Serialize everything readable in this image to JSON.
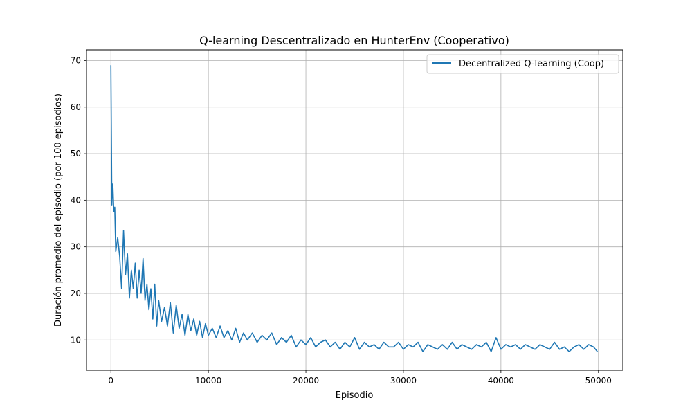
{
  "chart_data": {
    "type": "line",
    "title": "Q-learning Descentralizado en HunterEnv (Cooperativo)",
    "xlabel": "Episodio",
    "ylabel": "Duración promedio del episodio (por 100 episodios)",
    "xlim": [
      -2500,
      52500
    ],
    "ylim": [
      3.5,
      72.3
    ],
    "xticks": [
      0,
      10000,
      20000,
      30000,
      40000,
      50000
    ],
    "xtick_labels": [
      "0",
      "10000",
      "20000",
      "30000",
      "40000",
      "50000"
    ],
    "yticks": [
      10,
      20,
      30,
      40,
      50,
      60,
      70
    ],
    "ytick_labels": [
      "10",
      "20",
      "30",
      "40",
      "50",
      "60",
      "70"
    ],
    "grid": true,
    "legend_position": "top-right",
    "series": [
      {
        "name": "Decentralized Q-learning (Coop)",
        "color": "#1f77b4",
        "x": [
          0,
          100,
          200,
          300,
          400,
          500,
          700,
          900,
          1100,
          1300,
          1500,
          1700,
          1900,
          2100,
          2300,
          2500,
          2700,
          2900,
          3100,
          3300,
          3500,
          3700,
          3900,
          4100,
          4300,
          4500,
          4700,
          4900,
          5200,
          5500,
          5800,
          6100,
          6400,
          6700,
          7000,
          7300,
          7600,
          7900,
          8200,
          8500,
          8800,
          9100,
          9400,
          9700,
          10000,
          10400,
          10800,
          11200,
          11600,
          12000,
          12400,
          12800,
          13200,
          13600,
          14000,
          14500,
          15000,
          15500,
          16000,
          16500,
          17000,
          17500,
          18000,
          18500,
          19000,
          19500,
          20000,
          20500,
          21000,
          21500,
          22000,
          22500,
          23000,
          23500,
          24000,
          24500,
          25000,
          25500,
          26000,
          26500,
          27000,
          27500,
          28000,
          28500,
          29000,
          29500,
          30000,
          30500,
          31000,
          31500,
          32000,
          32500,
          33000,
          33500,
          34000,
          34500,
          35000,
          35500,
          36000,
          36500,
          37000,
          37500,
          38000,
          38500,
          39000,
          39500,
          40000,
          40500,
          41000,
          41500,
          42000,
          42500,
          43000,
          43500,
          44000,
          44500,
          45000,
          45500,
          46000,
          46500,
          47000,
          47500,
          48000,
          48500,
          49000,
          49500,
          49900
        ],
        "y": [
          69,
          39,
          43.5,
          37.5,
          38.5,
          29,
          32,
          28,
          21,
          33.5,
          24,
          28.5,
          19,
          25,
          21,
          26.5,
          19,
          25,
          20,
          27.5,
          18.5,
          22,
          16.5,
          21,
          14.5,
          22,
          13,
          18.5,
          14,
          17,
          13,
          18,
          11.5,
          17.5,
          12.5,
          15.5,
          11,
          15.5,
          12,
          14.5,
          11,
          14,
          10.5,
          13.5,
          11,
          12.5,
          10.5,
          13,
          10.5,
          12,
          10,
          12.5,
          9.5,
          11.5,
          10,
          11.5,
          9.5,
          11,
          10,
          11.5,
          9,
          10.5,
          9.5,
          11,
          8.5,
          10,
          9,
          10.5,
          8.5,
          9.5,
          10,
          8.5,
          9.5,
          8,
          9.5,
          8.5,
          10.5,
          8,
          9.5,
          8.5,
          9,
          8,
          9.5,
          8.5,
          8.5,
          9.5,
          8,
          9,
          8.5,
          9.5,
          7.5,
          9,
          8.5,
          8,
          9,
          8,
          9.5,
          8,
          9,
          8.5,
          8,
          9,
          8.5,
          9.5,
          7.5,
          10.5,
          8,
          9,
          8.5,
          9,
          8,
          9,
          8.5,
          8,
          9,
          8.5,
          8,
          9.5,
          8,
          8.5,
          7.5,
          8.5,
          9,
          8,
          9,
          8.5,
          7.5
        ]
      }
    ]
  }
}
